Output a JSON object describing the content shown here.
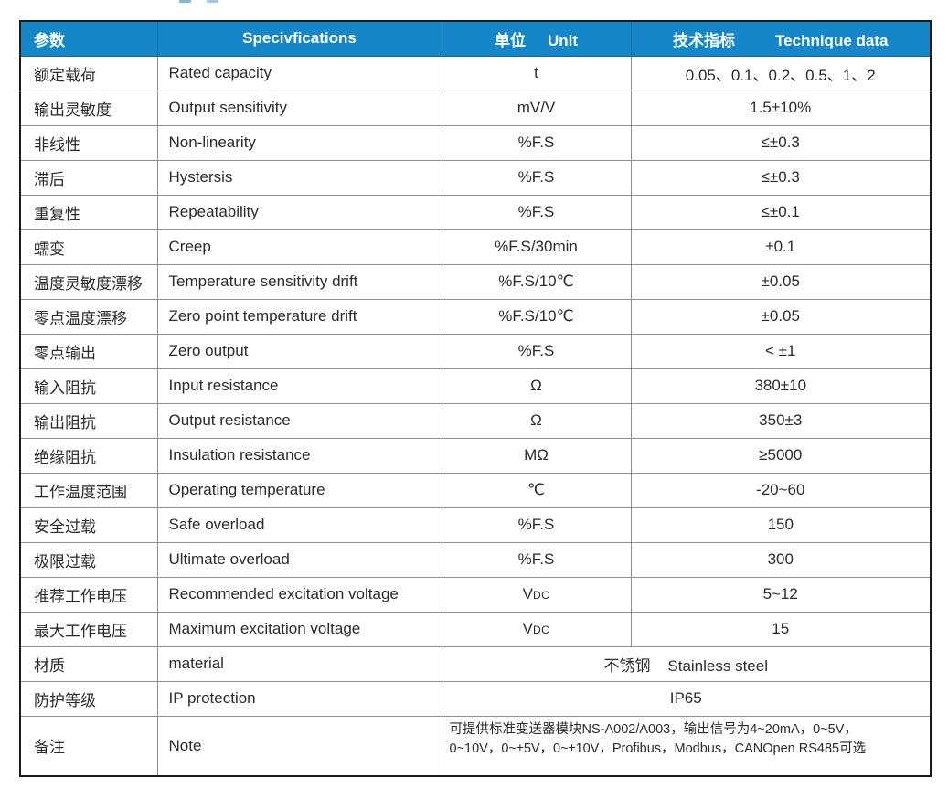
{
  "colors": {
    "header_bg": "#1587c8",
    "header_text": "#ffffff",
    "grid_line": "#8f8f8f",
    "outer_border": "#1c1c1c",
    "body_text": "#2b2b2b"
  },
  "header": {
    "param_cn": "参数",
    "spec_en": "Specivfications",
    "unit_cn": "单位",
    "unit_en": "Unit",
    "tech_cn": "技术指标",
    "tech_en": "Technique data"
  },
  "table": {
    "rows": [
      {
        "param_cn": "额定载荷",
        "spec_en": "Rated capacity",
        "unit": "t",
        "value": "0.05、0.1、0.2、0.5、1、2"
      },
      {
        "param_cn": "输出灵敏度",
        "spec_en": "Output sensitivity",
        "unit": "mV/V",
        "value": "1.5±10%"
      },
      {
        "param_cn": "非线性",
        "spec_en": "Non-linearity",
        "unit": "%F.S",
        "value": "≤±0.3"
      },
      {
        "param_cn": "滞后",
        "spec_en": "Hystersis",
        "unit": "%F.S",
        "value": "≤±0.3"
      },
      {
        "param_cn": "重复性",
        "spec_en": "Repeatability",
        "unit": "%F.S",
        "value": "≤±0.1"
      },
      {
        "param_cn": "蠕变",
        "spec_en": "Creep",
        "unit": "%F.S/30min",
        "value": "±0.1"
      },
      {
        "param_cn": "温度灵敏度漂移",
        "spec_en": "Temperature sensitivity drift",
        "unit": "%F.S/10℃",
        "value": "±0.05"
      },
      {
        "param_cn": "零点温度漂移",
        "spec_en": "Zero point temperature drift",
        "unit": "%F.S/10℃",
        "value": "±0.05"
      },
      {
        "param_cn": "零点输出",
        "spec_en": "Zero output",
        "unit": "%F.S",
        "value": "< ±1"
      },
      {
        "param_cn": "输入阻抗",
        "spec_en": "Input resistance",
        "unit": "Ω",
        "value": "380±10"
      },
      {
        "param_cn": "输出阻抗",
        "spec_en": "Output resistance",
        "unit": "Ω",
        "value": "350±3"
      },
      {
        "param_cn": "绝缘阻抗",
        "spec_en": "Insulation resistance",
        "unit": "MΩ",
        "value": "≥5000"
      },
      {
        "param_cn": "工作温度范围",
        "spec_en": "Operating temperature",
        "unit": "℃",
        "value": "-20~60"
      },
      {
        "param_cn": "安全过载",
        "spec_en": "Safe overload",
        "unit": "%F.S",
        "value": "150"
      },
      {
        "param_cn": "极限过载",
        "spec_en": "Ultimate overload",
        "unit": "%F.S",
        "value": "300"
      },
      {
        "param_cn": "推荐工作电压",
        "spec_en": "Recommended excitation voltage",
        "unit": {
          "base": "V",
          "sub": "DC"
        },
        "value": "5~12"
      },
      {
        "param_cn": "最大工作电压",
        "spec_en": "Maximum excitation voltage",
        "unit": {
          "base": "V",
          "sub": "DC"
        },
        "value": "15"
      },
      {
        "param_cn": "材质",
        "spec_en": "material",
        "merged": true,
        "value": "不锈钢    Stainless steel"
      },
      {
        "param_cn": "防护等级",
        "spec_en": "IP protection",
        "merged": true,
        "value": "IP65"
      },
      {
        "param_cn": "备注",
        "spec_en": "Note",
        "merged": true,
        "note": true,
        "note_lines": [
          "可提供标准变送器模块NS-A002/A003，输出信号为4~20mA，0~5V，",
          "0~10V，0~±5V，0~±10V，Profibus，Modbus，CANOpen RS485可选"
        ]
      }
    ]
  }
}
